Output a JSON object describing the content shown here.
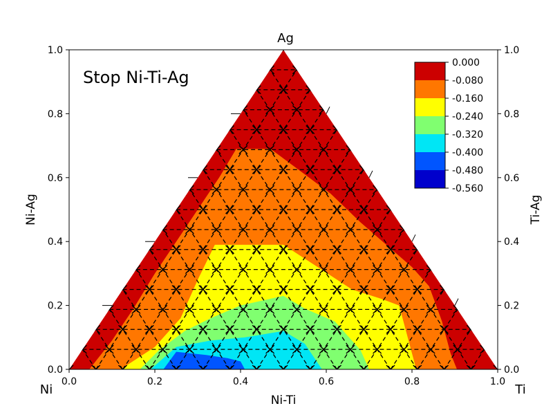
{
  "chart_data": {
    "type": "ternary-contour",
    "title": "Stop Ni-Ti-Ag",
    "vertex_labels": {
      "left": "Ni",
      "right": "Ti",
      "top": "Ag"
    },
    "xlabel": "Ni-Ti",
    "ylabel_left": "Ni-Ag",
    "ylabel_right": "Ti-Ag",
    "xlim": [
      0.0,
      1.0
    ],
    "ylim": [
      0.0,
      1.0
    ],
    "x_ticks": [
      "0.0",
      "0.2",
      "0.4",
      "0.6",
      "0.8",
      "1.0"
    ],
    "y_ticks": [
      "0.0",
      "0.2",
      "0.4",
      "0.6",
      "0.8",
      "1.0"
    ],
    "grid_step": 0.0625,
    "grid_style": "dashed",
    "legend_position": "top-right",
    "levels": [
      {
        "label": "0.000",
        "color": "#cc0000"
      },
      {
        "label": "-0.080",
        "color": "#ff7700"
      },
      {
        "label": "-0.160",
        "color": "#ffff00"
      },
      {
        "label": "-0.240",
        "color": "#80ff70"
      },
      {
        "label": "-0.320",
        "color": "#00e6f5"
      },
      {
        "label": "-0.400",
        "color": "#0055ff"
      },
      {
        "label": "-0.480",
        "color": "#0000cc"
      },
      {
        "label": "-0.560"
      }
    ],
    "regions": [
      {
        "level": -0.08,
        "color": "#ff7700",
        "boundary": [
          [
            0.047,
            0
          ],
          [
            0.1,
            0.09
          ],
          [
            0.15,
            0.19
          ],
          [
            0.2,
            0.3
          ],
          [
            0.25,
            0.4
          ],
          [
            0.3,
            0.5
          ],
          [
            0.35,
            0.6
          ],
          [
            0.39,
            0.69
          ],
          [
            0.47,
            0.69
          ],
          [
            0.54,
            0.62
          ],
          [
            0.61,
            0.55
          ],
          [
            0.68,
            0.46
          ],
          [
            0.8,
            0.32
          ],
          [
            0.84,
            0.26
          ],
          [
            0.87,
            0.15
          ],
          [
            0.89,
            0.05
          ],
          [
            0.905,
            0
          ]
        ]
      },
      {
        "level": -0.16,
        "color": "#ffff00",
        "boundary": [
          [
            0.12,
            0
          ],
          [
            0.2,
            0.07
          ],
          [
            0.26,
            0.16
          ],
          [
            0.3,
            0.28
          ],
          [
            0.34,
            0.39
          ],
          [
            0.5,
            0.39
          ],
          [
            0.58,
            0.32
          ],
          [
            0.66,
            0.25
          ],
          [
            0.73,
            0.22
          ],
          [
            0.77,
            0.2
          ],
          [
            0.79,
            0.1
          ],
          [
            0.81,
            0
          ]
        ]
      },
      {
        "level": -0.24,
        "color": "#80ff70",
        "boundary": [
          [
            0.165,
            0
          ],
          [
            0.21,
            0.06
          ],
          [
            0.27,
            0.12
          ],
          [
            0.33,
            0.16
          ],
          [
            0.4,
            0.2
          ],
          [
            0.5,
            0.23
          ],
          [
            0.55,
            0.19
          ],
          [
            0.62,
            0.15
          ],
          [
            0.68,
            0.06
          ],
          [
            0.7,
            0
          ]
        ]
      },
      {
        "level": -0.32,
        "color": "#00e6f5",
        "boundary": [
          [
            0.19,
            0
          ],
          [
            0.25,
            0.07
          ],
          [
            0.33,
            0.09
          ],
          [
            0.41,
            0.1
          ],
          [
            0.5,
            0.12
          ],
          [
            0.55,
            0.08
          ],
          [
            0.59,
            0
          ]
        ]
      },
      {
        "level": -0.4,
        "color": "#0055ff",
        "boundary": [
          [
            0.22,
            0
          ],
          [
            0.25,
            0.055
          ],
          [
            0.32,
            0.045
          ],
          [
            0.37,
            0.035
          ],
          [
            0.4,
            0.025
          ],
          [
            0.41,
            0
          ]
        ]
      }
    ],
    "data_points": "triangular grid of compositions at spacing 0.0625 within the Ni-Ti-Ag triangle"
  }
}
